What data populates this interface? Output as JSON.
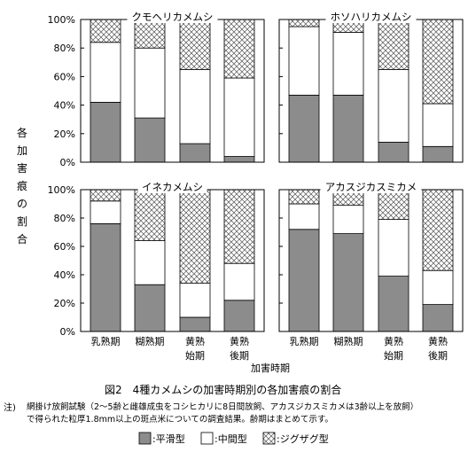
{
  "figure": {
    "caption": "図2　4種カメムシの加害時期別の各加害痕の割合",
    "ylabel": "各加害痕の割合",
    "xlabel": "加害時期",
    "note_prefix": "注)",
    "note_line1": "網掛け放飼試験（2～5齢と雌雄成虫をコシヒカリに8日間放飼、アカスジカスミカメは3齢以上を放飼）",
    "note_line2": "で得られた粒厚1.8mm以上の斑点米についての調査結果。齢期はまとめて示す。"
  },
  "colors": {
    "flat": "#8c8c8c",
    "middle": "#ffffff",
    "zigzag_line": "#555555"
  },
  "chart_data": [
    {
      "type": "bar",
      "stacked": true,
      "title": "クモヘリカメムシ",
      "categories": [
        "乳熟期",
        "糊熟期",
        "黄熟始期",
        "黄熟後期"
      ],
      "series": [
        {
          "name": "平滑型",
          "values": [
            42,
            31,
            13,
            4
          ]
        },
        {
          "name": "中間型",
          "values": [
            42,
            49,
            52,
            55
          ]
        },
        {
          "name": "ジグザグ型",
          "values": [
            16,
            20,
            35,
            41
          ]
        }
      ],
      "ylim": [
        0,
        100
      ],
      "yticks": [
        "0%",
        "20%",
        "40%",
        "60%",
        "80%",
        "100%"
      ]
    },
    {
      "type": "bar",
      "stacked": true,
      "title": "ホソハリカメムシ",
      "categories": [
        "乳熟期",
        "糊熟期",
        "黄熟始期",
        "黄熟後期"
      ],
      "series": [
        {
          "name": "平滑型",
          "values": [
            47,
            47,
            14,
            11
          ]
        },
        {
          "name": "中間型",
          "values": [
            48,
            44,
            51,
            30
          ]
        },
        {
          "name": "ジグザグ型",
          "values": [
            5,
            9,
            35,
            59
          ]
        }
      ],
      "ylim": [
        0,
        100
      ],
      "yticks": [
        "0%",
        "20%",
        "40%",
        "60%",
        "80%",
        "100%"
      ]
    },
    {
      "type": "bar",
      "stacked": true,
      "title": "イネカメムシ",
      "categories": [
        "乳熟期",
        "糊熟期",
        "黄熟始期",
        "黄熟後期"
      ],
      "series": [
        {
          "name": "平滑型",
          "values": [
            76,
            33,
            10,
            22
          ]
        },
        {
          "name": "中間型",
          "values": [
            16,
            31,
            24,
            26
          ]
        },
        {
          "name": "ジグザグ型",
          "values": [
            8,
            36,
            66,
            52
          ]
        }
      ],
      "ylim": [
        0,
        100
      ],
      "yticks": [
        "0%",
        "20%",
        "40%",
        "60%",
        "80%",
        "100%"
      ]
    },
    {
      "type": "bar",
      "stacked": true,
      "title": "アカスジカスミカメ",
      "categories": [
        "乳熟期",
        "糊熟期",
        "黄熟始期",
        "黄熟後期"
      ],
      "series": [
        {
          "name": "平滑型",
          "values": [
            72,
            69,
            39,
            19
          ]
        },
        {
          "name": "中間型",
          "values": [
            18,
            20,
            40,
            24
          ]
        },
        {
          "name": "ジグザグ型",
          "values": [
            10,
            11,
            21,
            57
          ]
        }
      ],
      "ylim": [
        0,
        100
      ],
      "yticks": [
        "0%",
        "20%",
        "40%",
        "60%",
        "80%",
        "100%"
      ]
    }
  ],
  "category_labels": [
    {
      "line1": "乳熟期",
      "line2": ""
    },
    {
      "line1": "糊熟期",
      "line2": ""
    },
    {
      "line1": "黄熟",
      "line2": "始期"
    },
    {
      "line1": "黄熟",
      "line2": "後期"
    }
  ],
  "legend": [
    {
      "label": ":平滑型",
      "key": "flat"
    },
    {
      "label": ":中間型",
      "key": "middle"
    },
    {
      "label": ":ジグザグ型",
      "key": "zigzag"
    }
  ]
}
